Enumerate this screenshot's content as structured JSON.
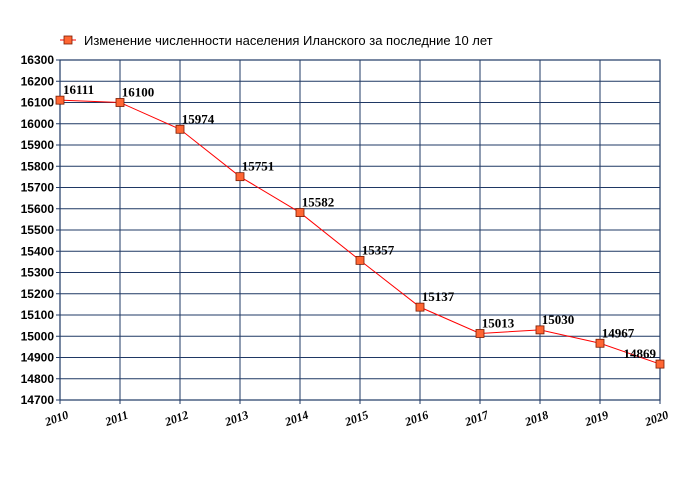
{
  "chart_data": {
    "type": "line",
    "legend": {
      "position": "top",
      "entries": [
        "Изменение численности населения Иланского за последние 10 лет"
      ]
    },
    "title": "",
    "xlabel": "",
    "ylabel": "",
    "x": [
      "2010",
      "2011",
      "2012",
      "2013",
      "2014",
      "2015",
      "2016",
      "2017",
      "2018",
      "2019",
      "2020"
    ],
    "series": [
      {
        "name": "Изменение численности населения Иланского за последние 10 лет",
        "values": [
          16111,
          16100,
          15974,
          15751,
          15582,
          15357,
          15137,
          15013,
          15030,
          14967,
          14869
        ]
      }
    ],
    "data_labels": [
      "16111",
      "16100",
      "15974",
      "15751",
      "15582",
      "15357",
      "15137",
      "15013",
      "15030",
      "14967",
      "14869"
    ],
    "ylim": [
      14700,
      16300
    ],
    "ytick_step": 100,
    "grid": true,
    "colors": {
      "background": "#ffffff",
      "grid": "#1f3864",
      "line": "#ff0000",
      "marker_fill": "#ff6633",
      "marker_stroke": "#7a1a00"
    }
  }
}
